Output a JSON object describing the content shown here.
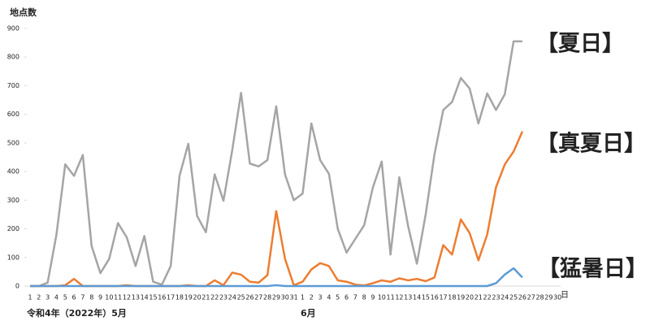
{
  "chart_data": {
    "type": "line",
    "y_label": "地点数",
    "x_label_may": "令和4年（2022年）5月",
    "x_label_june": "6月",
    "x_unit": "日",
    "categories": [
      "1",
      "2",
      "3",
      "4",
      "5",
      "6",
      "7",
      "8",
      "9",
      "10",
      "11",
      "12",
      "13",
      "14",
      "15",
      "16",
      "17",
      "18",
      "19",
      "20",
      "21",
      "22",
      "23",
      "24",
      "25",
      "26",
      "27",
      "28",
      "29",
      "30",
      "31",
      "1",
      "2",
      "3",
      "4",
      "5",
      "6",
      "7",
      "8",
      "9",
      "10",
      "11",
      "12",
      "13",
      "14",
      "15",
      "16",
      "17",
      "18",
      "19",
      "20",
      "21",
      "22",
      "23",
      "24",
      "25",
      "26",
      "27",
      "28",
      "29",
      "30"
    ],
    "ylim": [
      0,
      900
    ],
    "yticks": [
      0,
      100,
      200,
      300,
      400,
      500,
      600,
      700,
      800,
      900
    ],
    "grid": false,
    "series": [
      {
        "name": "【夏日】",
        "color": "#a5a5a5",
        "values": [
          0,
          0,
          12,
          180,
          425,
          385,
          458,
          140,
          45,
          95,
          220,
          170,
          70,
          175,
          15,
          5,
          70,
          385,
          497,
          245,
          188,
          390,
          298,
          475,
          675,
          428,
          418,
          440,
          628,
          390,
          300,
          323,
          568,
          440,
          392,
          200,
          117,
          165,
          212,
          345,
          435,
          110,
          380,
          210,
          78,
          250,
          460,
          615,
          643,
          727,
          690,
          568,
          673,
          615,
          670,
          855,
          855,
          null,
          null,
          null,
          null
        ]
      },
      {
        "name": "【真夏日】",
        "color": "#ed7d31",
        "values": [
          0,
          0,
          0,
          0,
          3,
          25,
          0,
          0,
          0,
          0,
          0,
          3,
          0,
          0,
          0,
          0,
          0,
          0,
          3,
          0,
          0,
          20,
          3,
          47,
          40,
          15,
          12,
          38,
          262,
          95,
          3,
          15,
          58,
          80,
          70,
          20,
          15,
          5,
          2,
          10,
          20,
          15,
          27,
          20,
          25,
          17,
          30,
          143,
          110,
          233,
          185,
          90,
          180,
          345,
          425,
          470,
          540,
          null,
          null,
          null,
          null
        ]
      },
      {
        "name": "【猛暑日】",
        "color": "#5b9bd5",
        "values": [
          0,
          0,
          0,
          0,
          0,
          0,
          0,
          0,
          0,
          0,
          0,
          0,
          0,
          0,
          0,
          0,
          0,
          0,
          0,
          0,
          0,
          0,
          0,
          0,
          0,
          0,
          0,
          0,
          3,
          0,
          0,
          0,
          0,
          0,
          0,
          0,
          0,
          0,
          0,
          0,
          0,
          0,
          0,
          0,
          0,
          0,
          0,
          0,
          0,
          0,
          0,
          0,
          0,
          10,
          40,
          62,
          30,
          null,
          null,
          null,
          null
        ]
      }
    ]
  }
}
